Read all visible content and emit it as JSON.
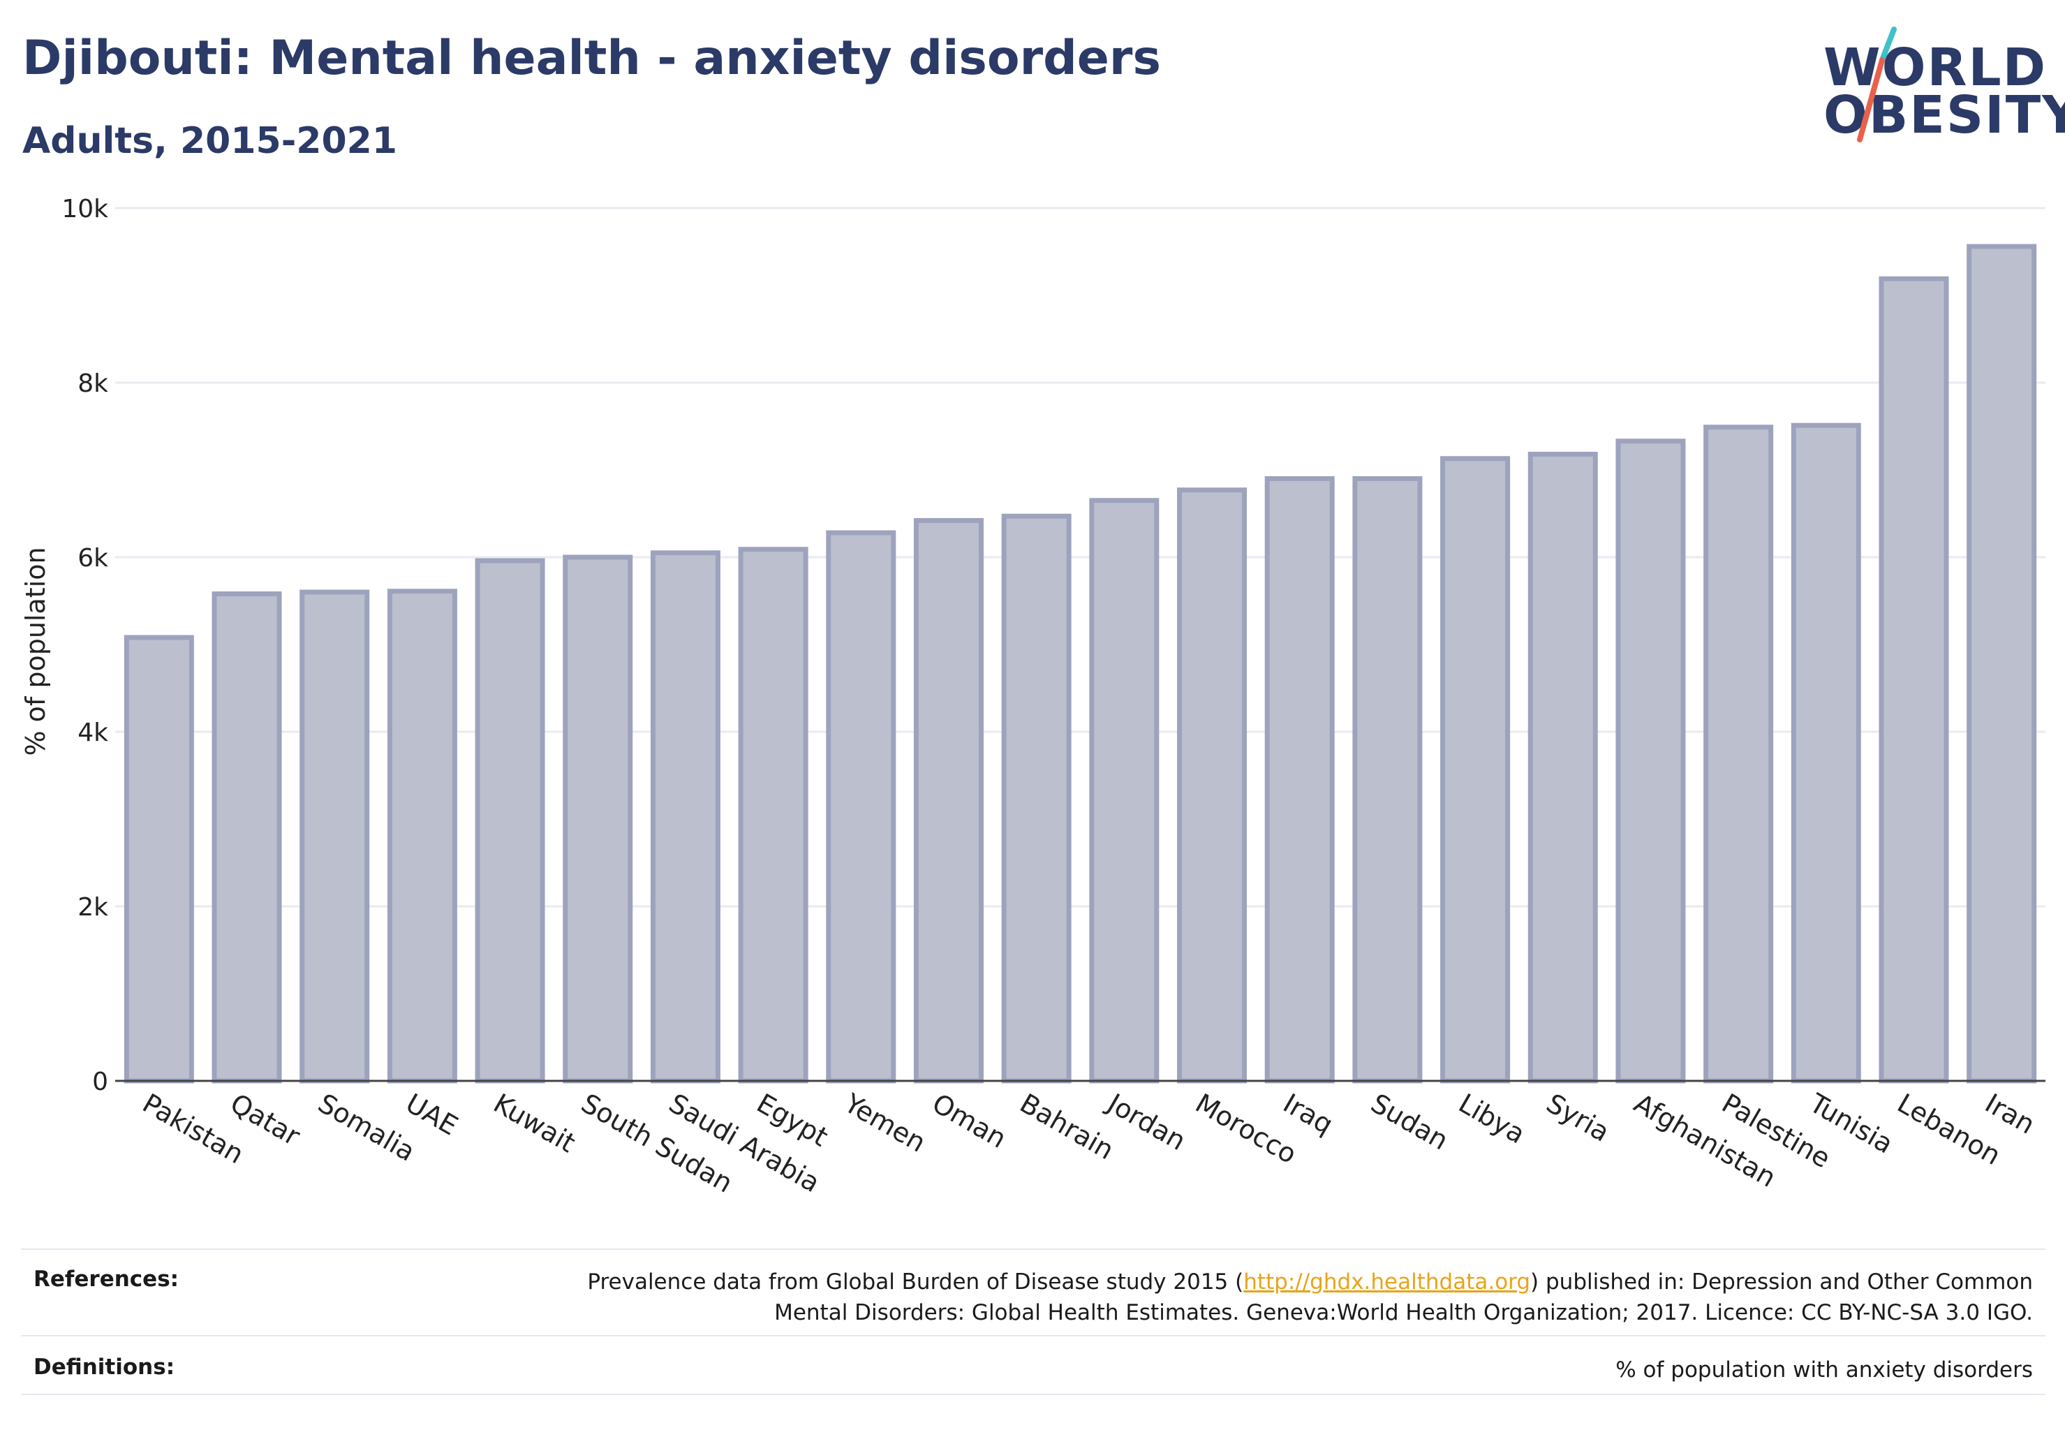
{
  "header": {
    "title": "Djibouti: Mental health - anxiety disorders",
    "subtitle": "Adults, 2015-2021"
  },
  "logo": {
    "line1": "WORLD",
    "line2": "OBESITY",
    "slash_colors": [
      "#3fc1c9",
      "#e8614d"
    ]
  },
  "chart_data": {
    "type": "bar",
    "title": "Djibouti: Mental health - anxiety disorders",
    "subtitle": "Adults, 2015-2021",
    "xlabel": "",
    "ylabel": "% of population",
    "ylim": [
      0,
      10000
    ],
    "yticks": [
      0,
      2000,
      4000,
      6000,
      8000,
      10000
    ],
    "ytick_labels": [
      "0",
      "2k",
      "4k",
      "6k",
      "8k",
      "10k"
    ],
    "grid": true,
    "bar_color": "#bcc0ce",
    "bar_edge_color": "#9da3bd",
    "categories": [
      "Pakistan",
      "Qatar",
      "Somalia",
      "UAE",
      "Kuwait",
      "South Sudan",
      "Saudi Arabia",
      "Egypt",
      "Yemen",
      "Oman",
      "Bahrain",
      "Jordan",
      "Morocco",
      "Iraq",
      "Sudan",
      "Libya",
      "Syria",
      "Afghanistan",
      "Palestine",
      "Tunisia",
      "Lebanon",
      "Iran"
    ],
    "values": [
      5080,
      5580,
      5600,
      5610,
      5960,
      6000,
      6050,
      6090,
      6280,
      6420,
      6470,
      6650,
      6770,
      6900,
      6900,
      7130,
      7180,
      7330,
      7490,
      7510,
      9190,
      9560
    ]
  },
  "footer": {
    "references_label": "References:",
    "references_before": "Prevalence data from Global Burden of Disease study 2015 (",
    "references_link": "http://ghdx.healthdata.org",
    "references_after": ") published in: Depression and Other Common",
    "references_line2": "Mental Disorders: Global Health Estimates. Geneva:World Health Organization; 2017. Licence: CC BY-NC-SA 3.0 IGO.",
    "definitions_label": "Definitions:",
    "definitions_text": "% of population with anxiety disorders",
    "link_color": "#e8a419"
  }
}
